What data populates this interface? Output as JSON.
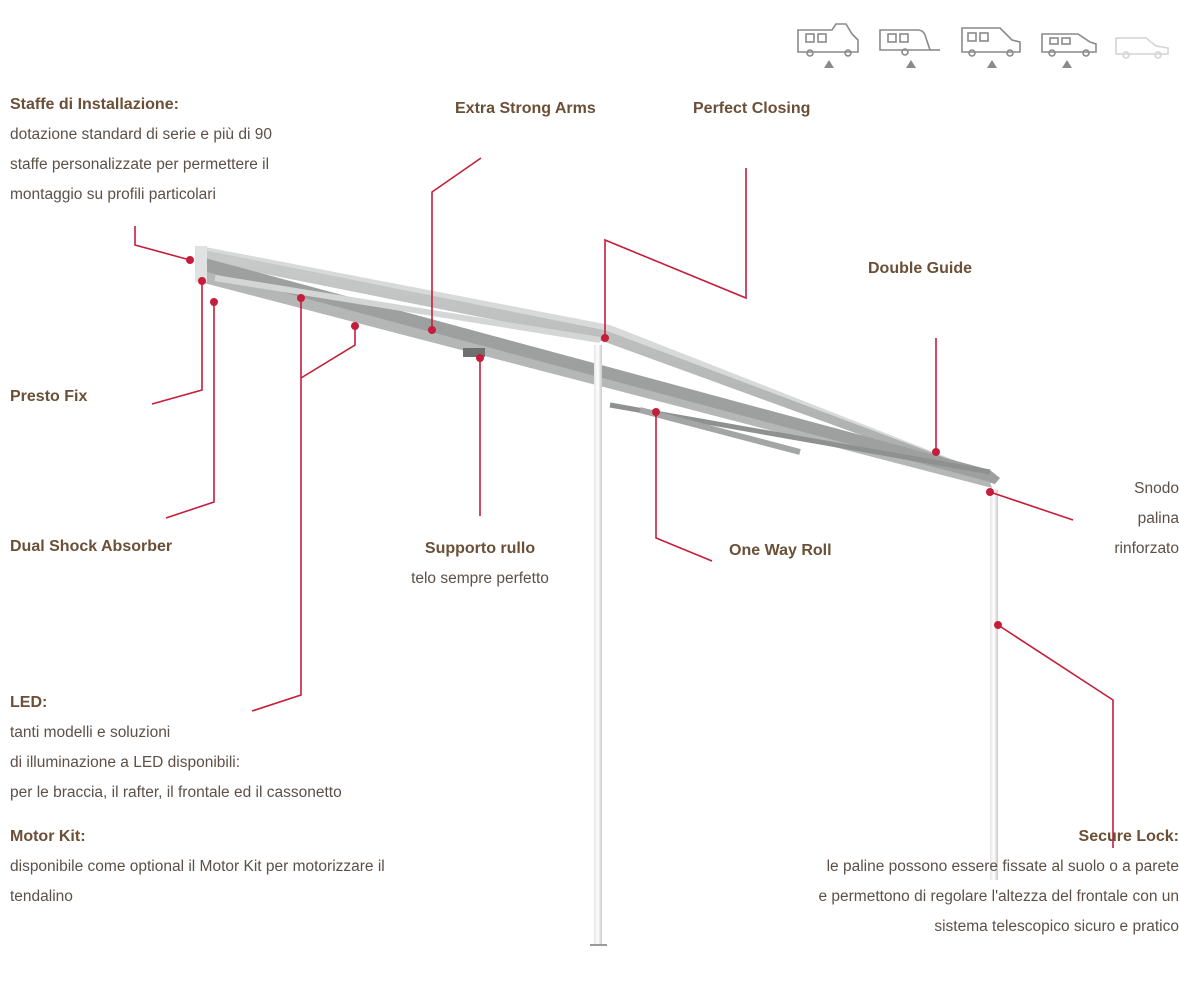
{
  "vehicle_icons": [
    "motorhome-icon",
    "caravan-icon",
    "van-conversion-icon",
    "compact-van-icon",
    "suv-icon"
  ],
  "vehicle_compatibility": [
    true,
    true,
    true,
    true,
    false
  ],
  "colors": {
    "accent": "#c41e3a",
    "title": "#6b4f36",
    "text": "#5c5048",
    "awning": "#b9bbbb"
  },
  "labels": {
    "staffe": {
      "title": "Staffe di Installazione:",
      "lines": [
        "dotazione standard di serie e più di 90",
        "staffe personalizzate per permettere il",
        "montaggio su profili particolari"
      ]
    },
    "extra_strong": {
      "title": "Extra Strong Arms"
    },
    "perfect_closing": {
      "title": "Perfect Closing"
    },
    "double_guide": {
      "title": "Double Guide"
    },
    "presto_fix": {
      "title": "Presto Fix"
    },
    "dual_shock": {
      "title": "Dual Shock Absorber"
    },
    "supporto": {
      "title": "Supporto rullo",
      "lines": [
        "telo sempre perfetto"
      ]
    },
    "one_way": {
      "title": "One Way Roll"
    },
    "snodo": {
      "lines": [
        "Snodo",
        "palina",
        "rinforzato"
      ]
    },
    "led": {
      "title": "LED:",
      "lines": [
        "tanti modelli e soluzioni",
        "di illuminazione a LED disponibili:",
        "per le braccia, il rafter, il frontale ed il cassonetto"
      ]
    },
    "motor_kit": {
      "title": "Motor Kit:",
      "lines": [
        "disponibile come optional il Motor Kit per motorizzare il",
        "tendalino"
      ]
    },
    "secure_lock": {
      "title": "Secure Lock:",
      "lines": [
        "le paline possono essere fissate al suolo o a parete",
        "e permettono di regolare l'altezza del frontale con un",
        "sistema telescopico sicuro e pratico"
      ]
    }
  }
}
